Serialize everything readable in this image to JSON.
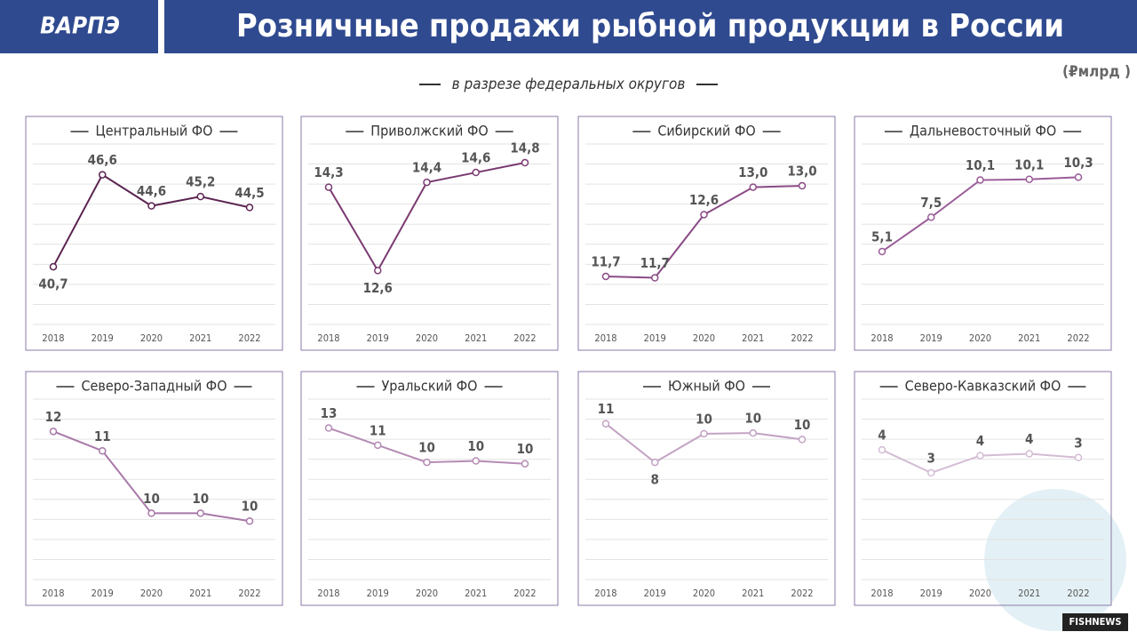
{
  "header": {
    "logo": "ВАРПЭ",
    "title": "Розничные продажи рыбной продукции в России"
  },
  "subtitle": "в разрезе федеральных округов",
  "unit": "(₽млрд )",
  "badge": "FISHNEWS",
  "chart_data": [
    {
      "type": "line",
      "title": "Центральный ФО",
      "color": "#5b2451",
      "categories": [
        "2018",
        "2019",
        "2020",
        "2021",
        "2022"
      ],
      "values": [
        40.7,
        46.6,
        44.6,
        45.2,
        44.5
      ],
      "value_labels": [
        "40,7",
        "46,6",
        "44,6",
        "45,2",
        "44,5"
      ],
      "ylim": [
        37,
        48
      ]
    },
    {
      "type": "line",
      "title": "Приволжский ФО",
      "color": "#7a3a72",
      "categories": [
        "2018",
        "2019",
        "2020",
        "2021",
        "2022"
      ],
      "values": [
        14.3,
        12.6,
        14.4,
        14.6,
        14.8
      ],
      "value_labels": [
        "14,3",
        "12,6",
        "14,4",
        "14,6",
        "14,8"
      ],
      "ylim": [
        11.5,
        15
      ]
    },
    {
      "type": "line",
      "title": "Сибирский ФО",
      "color": "#8a4a85",
      "categories": [
        "2018",
        "2019",
        "2020",
        "2021",
        "2022"
      ],
      "values": [
        11.7,
        11.68,
        12.6,
        13.0,
        13.02
      ],
      "value_labels": [
        "11,7",
        "11,7",
        "12,6",
        "13,0",
        "13,0"
      ],
      "ylim": [
        11,
        13.5
      ]
    },
    {
      "type": "line",
      "title": "Дальневосточный ФО",
      "color": "#9a5c98",
      "categories": [
        "2018",
        "2019",
        "2020",
        "2021",
        "2022"
      ],
      "values": [
        5.1,
        7.5,
        10.1,
        10.15,
        10.3
      ],
      "value_labels": [
        "5,1",
        "7,5",
        "10,1",
        "10,1",
        "10,3"
      ],
      "ylim": [
        0,
        12
      ]
    },
    {
      "type": "line",
      "title": "Северо-Западный ФО",
      "color": "#a878a8",
      "categories": [
        "2018",
        "2019",
        "2020",
        "2021",
        "2022"
      ],
      "values": [
        11.8,
        11.3,
        9.7,
        9.7,
        9.5
      ],
      "value_labels": [
        "12",
        "11",
        "10",
        "10",
        "10"
      ],
      "ylim": [
        8,
        12.4
      ]
    },
    {
      "type": "line",
      "title": "Уральский ФО",
      "color": "#b58cb5",
      "categories": [
        "2018",
        "2019",
        "2020",
        "2021",
        "2022"
      ],
      "values": [
        12.6,
        11.4,
        10.2,
        10.3,
        10.1
      ],
      "value_labels": [
        "13",
        "11",
        "10",
        "10",
        "10"
      ],
      "ylim": [
        2,
        14
      ]
    },
    {
      "type": "line",
      "title": "Южный ФО",
      "color": "#c3a3c3",
      "categories": [
        "2018",
        "2019",
        "2020",
        "2021",
        "2022"
      ],
      "values": [
        10.9,
        8.2,
        10.2,
        10.25,
        9.8
      ],
      "value_labels": [
        "11",
        "8",
        "10",
        "10",
        "10"
      ],
      "ylim": [
        0,
        12
      ]
    },
    {
      "type": "line",
      "title": "Северо-Кавказский ФО",
      "color": "#d4bcd4",
      "categories": [
        "2018",
        "2019",
        "2020",
        "2021",
        "2022"
      ],
      "values": [
        3.8,
        2.6,
        3.5,
        3.6,
        3.4
      ],
      "value_labels": [
        "4",
        "3",
        "4",
        "4",
        "3"
      ],
      "ylim": [
        -3,
        6
      ]
    }
  ]
}
